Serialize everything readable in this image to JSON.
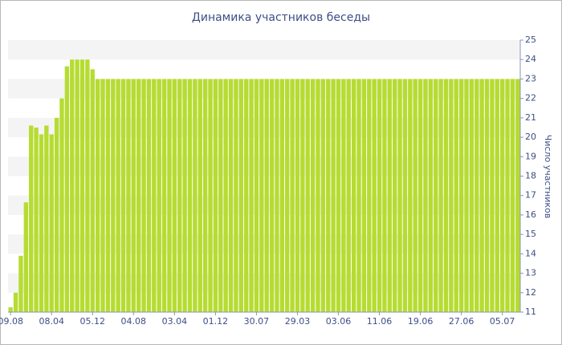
{
  "chart_data": {
    "type": "bar",
    "title": "Динамика участников беседы",
    "y_axis_label": "Число участников",
    "categories": [
      "09.08",
      null,
      null,
      null,
      null,
      null,
      null,
      null,
      "08.04",
      null,
      null,
      null,
      null,
      null,
      null,
      null,
      "05.12",
      null,
      null,
      null,
      null,
      null,
      null,
      null,
      "04.08",
      null,
      null,
      null,
      null,
      null,
      null,
      null,
      "03.04",
      null,
      null,
      null,
      null,
      null,
      null,
      null,
      "01.12",
      null,
      null,
      null,
      null,
      null,
      null,
      null,
      "30.07",
      null,
      null,
      null,
      null,
      null,
      null,
      null,
      "29.03",
      null,
      null,
      null,
      null,
      null,
      null,
      null,
      "03.06",
      null,
      null,
      null,
      null,
      null,
      null,
      null,
      "11.06",
      null,
      null,
      null,
      null,
      null,
      null,
      null,
      "19.06",
      null,
      null,
      null,
      null,
      null,
      null,
      null,
      "27.06",
      null,
      null,
      null,
      null,
      null,
      null,
      null,
      "05.07",
      null,
      null,
      null
    ],
    "values": [
      11.25,
      12,
      13.9,
      16.65,
      20.6,
      20.5,
      20.15,
      20.6,
      20.15,
      21,
      22,
      23.65,
      24,
      24,
      24,
      24,
      23.5,
      23,
      23,
      23,
      23,
      23,
      23,
      23,
      23,
      23,
      23,
      23,
      23,
      23,
      23,
      23,
      23,
      23,
      23,
      23,
      23,
      23,
      23,
      23,
      23,
      23,
      23,
      23,
      23,
      23,
      23,
      23,
      23,
      23,
      23,
      23,
      23,
      23,
      23,
      23,
      23,
      23,
      23,
      23,
      23,
      23,
      23,
      23,
      23,
      23,
      23,
      23,
      23,
      23,
      23,
      23,
      23,
      23,
      23,
      23,
      23,
      23,
      23,
      23,
      23,
      23,
      23,
      23,
      23,
      23,
      23,
      23,
      23,
      23,
      23,
      23,
      23,
      23,
      23,
      23,
      23,
      23,
      23,
      23
    ],
    "color": "#b6dc32",
    "ylim": [
      11,
      25
    ],
    "yticks": [
      11,
      12,
      13,
      14,
      15,
      16,
      17,
      18,
      19,
      20,
      21,
      22,
      23,
      24,
      25
    ],
    "y_axis_side": "right",
    "grid": true
  }
}
